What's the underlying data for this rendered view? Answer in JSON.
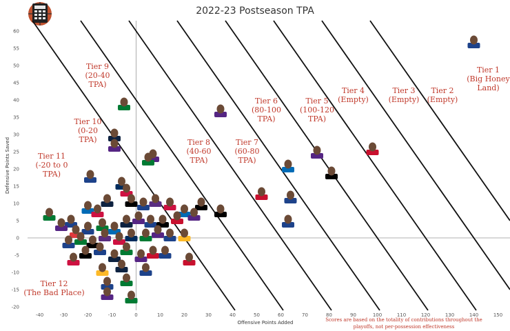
{
  "chart_data": {
    "type": "scatter",
    "title": "2022-23 Postseason TPA",
    "xlabel": "Offensive Points Added",
    "ylabel": "Defensive Points Saved",
    "xlim": [
      -45,
      155
    ],
    "ylim": [
      -21,
      63
    ],
    "x_ticks": [
      "-40",
      "-30",
      "-20",
      "-10",
      "0",
      "10",
      "20",
      "30",
      "40",
      "50",
      "60",
      "70",
      "80",
      "90",
      "100",
      "110",
      "120",
      "130",
      "140",
      "150"
    ],
    "y_ticks": [
      "-20",
      "-15",
      "-10",
      "-5",
      "0",
      "5",
      "10",
      "15",
      "20",
      "25",
      "30",
      "35",
      "40",
      "45",
      "50",
      "55",
      "60"
    ],
    "tier_lines": [
      20,
      40,
      60,
      80,
      100,
      120,
      140,
      160
    ],
    "tiers": [
      {
        "lines": [
          "Tier 1",
          "(Big Honey",
          "Land)"
        ],
        "x": 146,
        "y": 48
      },
      {
        "lines": [
          "Tier 2",
          "(Empty)"
        ],
        "x": 127,
        "y": 42
      },
      {
        "lines": [
          "Tier 3",
          "(Empty)"
        ],
        "x": 111,
        "y": 42
      },
      {
        "lines": [
          "Tier 4",
          "(Empty)"
        ],
        "x": 90,
        "y": 42
      },
      {
        "lines": [
          "Tier 5",
          "(100-120",
          "TPA)"
        ],
        "x": 75,
        "y": 39
      },
      {
        "lines": [
          "Tier 6",
          "(80-100",
          "TPA)"
        ],
        "x": 54,
        "y": 39
      },
      {
        "lines": [
          "Tier 7",
          "(60-80",
          "TPA)"
        ],
        "x": 46,
        "y": 27
      },
      {
        "lines": [
          "Tier 8",
          "(40-60",
          "TPA)"
        ],
        "x": 26,
        "y": 27
      },
      {
        "lines": [
          "Tier 9",
          "(20-40",
          "TPA)"
        ],
        "x": -16,
        "y": 49
      },
      {
        "lines": [
          "Tier 10",
          "(0-20",
          "TPA)"
        ],
        "x": -20,
        "y": 33
      },
      {
        "lines": [
          "Tier 11",
          "(-20 to 0",
          "TPA)"
        ],
        "x": -35,
        "y": 23
      },
      {
        "lines": [
          "Tier 12",
          "(The Bad Place)"
        ],
        "x": -34,
        "y": -14
      }
    ],
    "footnote": [
      "Scores are based on the totality of contributions throughout the",
      "playoffs, not per-possession effectiveness"
    ],
    "points": [
      [
        140,
        57,
        "#1d428a"
      ],
      [
        98,
        26,
        "#c8102e"
      ],
      [
        81,
        19,
        "#000000"
      ],
      [
        75,
        25,
        "#552583"
      ],
      [
        63,
        21,
        "#006bb6"
      ],
      [
        64,
        12,
        "#1d428a"
      ],
      [
        63,
        5,
        "#1d428a"
      ],
      [
        52,
        13,
        "#c8102e"
      ],
      [
        35,
        37,
        "#552583"
      ],
      [
        -5,
        39,
        "#007a33"
      ],
      [
        -9,
        30,
        "#0e2240"
      ],
      [
        -9,
        27,
        "#552583"
      ],
      [
        7,
        24,
        "#552583"
      ],
      [
        5,
        23,
        "#007a33"
      ],
      [
        -19,
        18,
        "#1d428a"
      ],
      [
        -6,
        16,
        "#002b5c"
      ],
      [
        -4,
        14,
        "#ce1141"
      ],
      [
        -36,
        7,
        "#007a33"
      ],
      [
        -27,
        5,
        "#1d428a"
      ],
      [
        -20,
        9,
        "#006bb6"
      ],
      [
        -16,
        8,
        "#ce1141"
      ],
      [
        -12,
        11,
        "#0e2240"
      ],
      [
        -2,
        11,
        "#000000"
      ],
      [
        3,
        10,
        "#1d428a"
      ],
      [
        8,
        11,
        "#5a2d81"
      ],
      [
        14,
        10,
        "#ce1141"
      ],
      [
        20,
        8,
        "#006bb6"
      ],
      [
        27,
        10,
        "#000000"
      ],
      [
        35,
        8,
        "#000000"
      ],
      [
        -31,
        4,
        "#552583"
      ],
      [
        -25,
        2,
        "#e03a3e"
      ],
      [
        -20,
        3,
        "#1d428a"
      ],
      [
        -14,
        4,
        "#007a33"
      ],
      [
        -9,
        3,
        "#006bb6"
      ],
      [
        -4,
        5,
        "#0e2240"
      ],
      [
        1,
        6,
        "#552583"
      ],
      [
        6,
        5,
        "#1d428a"
      ],
      [
        11,
        5,
        "#000000"
      ],
      [
        17,
        6,
        "#c8102e"
      ],
      [
        24,
        7,
        "#552583"
      ],
      [
        -28,
        -1,
        "#1d428a"
      ],
      [
        -23,
        0,
        "#007a33"
      ],
      [
        -18,
        -1,
        "#000000"
      ],
      [
        -13,
        1,
        "#5a2d81"
      ],
      [
        -7,
        0,
        "#ce1141"
      ],
      [
        -2,
        1,
        "#002b5c"
      ],
      [
        4,
        1,
        "#007a33"
      ],
      [
        9,
        2,
        "#552583"
      ],
      [
        14,
        1,
        "#1d428a"
      ],
      [
        20,
        1,
        "#fdb927"
      ],
      [
        -26,
        -6,
        "#ce1141"
      ],
      [
        -21,
        -4,
        "#000000"
      ],
      [
        -15,
        -3,
        "#1d428a"
      ],
      [
        -9,
        -5,
        "#0e2240"
      ],
      [
        -4,
        -3,
        "#007a33"
      ],
      [
        2,
        -5,
        "#552583"
      ],
      [
        7,
        -4,
        "#c8102e"
      ],
      [
        12,
        -4,
        "#1d428a"
      ],
      [
        -14,
        -9,
        "#fdb927"
      ],
      [
        -6,
        -8,
        "#0e2240"
      ],
      [
        4,
        -9,
        "#1d428a"
      ],
      [
        -12,
        -13,
        "#1d428a"
      ],
      [
        -4,
        -12,
        "#007a33"
      ],
      [
        -12,
        -16,
        "#552583"
      ],
      [
        -2,
        -17,
        "#007a33"
      ],
      [
        22,
        -6,
        "#c8102e"
      ]
    ]
  }
}
